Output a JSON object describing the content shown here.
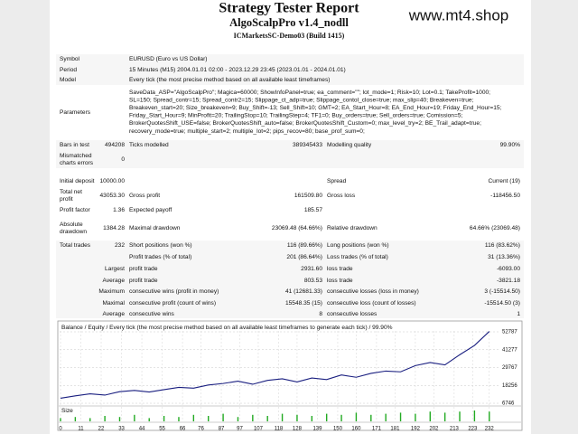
{
  "header": {
    "title": "Strategy Tester Report",
    "subtitle": "AlgoScalpPro v1.4_nodll",
    "server": "ICMarketsSC-Demo03 (Build 1415)",
    "site": "www.mt4.shop"
  },
  "info": [
    {
      "label": "Symbol",
      "value": "EURUSD (Euro vs US Dollar)"
    },
    {
      "label": "Period",
      "value": "15 Minutes (M15) 2004.01.01 02:00 - 2023.12.29 23:45 (2023.01.01 - 2024.01.01)"
    },
    {
      "label": "Model",
      "value": "Every tick (the most precise method based on all available least timeframes)"
    }
  ],
  "parameters": {
    "label": "Parameters",
    "lines": [
      "SaveData_ASP=\"AlgoScalpPro\"; Magica=60000; ShowInfoPanel=true; ea_comment=\"\"; lot_mode=1; Risk=10; Lot=0.1; TakeProfit=1000;",
      "SL=150; Spread_contr=15; Spread_contr2=15; Slippage_ct_adp=true; Slippage_contol_close=true; max_slip=40; Breakeven=true;",
      "Breakeven_start=20; Size_breakeven=9; Buy_Shift=-13; Sell_Shift=10; GMT=2; EA_Start_Hour=8; EA_End_Hour=19; Friday_End_Hour=15;",
      "Friday_Start_Hour=9; MinProfit=20; TrailingStop=10; TrailingStep=4; TF1=0; Buy_orders=true; Sell_orders=true; Comission=5;",
      "BrokerQuotesShift_USE=false; BrokerQuotesShift_auto=false; BrokerQuotesShift_Custom=0; max_level_try=2; BE_Trail_adapt=true;",
      "recovery_mode=true; multiple_start=2; multiple_lot=2; pips_recov=80; base_prof_sum=0;"
    ]
  },
  "stats": {
    "rows": [
      [
        "Bars in test",
        "494208",
        "Ticks modelled",
        "389345433",
        "Modelling quality",
        "99.90%"
      ],
      [
        "Mismatched charts errors",
        "0",
        null,
        null,
        null,
        null
      ],
      [
        "Initial deposit",
        "10000.00",
        null,
        null,
        "Spread",
        "Current (19)"
      ],
      [
        "Total net profit",
        "43053.30",
        "Gross profit",
        "161509.80",
        "Gross loss",
        "-118456.50"
      ],
      [
        "Profit factor",
        "1.36",
        "Expected payoff",
        "185.57",
        null,
        null
      ],
      [
        "Absolute drawdown",
        "1384.28",
        "Maximal drawdown",
        "23069.48 (64.66%)",
        "Relative drawdown",
        "64.66% (23069.48)"
      ],
      [
        "Total trades",
        "232",
        "Short positions (won %)",
        "116 (89.66%)",
        "Long positions (won %)",
        "116 (83.62%)"
      ],
      [
        null,
        null,
        "Profit trades (% of total)",
        "201 (86.64%)",
        "Loss trades (% of total)",
        "31 (13.36%)"
      ],
      [
        "Largest",
        null,
        "profit trade",
        "2931.60",
        "loss trade",
        "-6093.00"
      ],
      [
        "Average",
        null,
        "profit trade",
        "803.53",
        "loss trade",
        "-3821.18"
      ],
      [
        "Maximum",
        null,
        "consecutive wins (profit in money)",
        "41 (12681.33)",
        "consecutive losses (loss in money)",
        "3 (-15514.50)"
      ],
      [
        "Maximal",
        null,
        "consecutive profit (count of wins)",
        "15548.35 (15)",
        "consecutive loss (count of losses)",
        "-15514.50 (3)"
      ],
      [
        "Average",
        null,
        "consecutive wins",
        "8",
        "consecutive losses",
        "1"
      ]
    ]
  },
  "chart_data": {
    "type": "line",
    "legend": "Balance / Equity / Every tick (the most precise method based on all available least timeframes to generate each tick) / 99.90%",
    "size_label": "Size",
    "x": [
      0,
      8,
      16,
      24,
      32,
      40,
      48,
      56,
      64,
      72,
      80,
      88,
      96,
      104,
      112,
      120,
      128,
      136,
      144,
      152,
      160,
      168,
      176,
      184,
      192,
      200,
      208,
      216,
      224,
      232
    ],
    "series": [
      {
        "color": "#1a1f80",
        "values": [
          10000,
          11500,
          12800,
          12000,
          14200,
          15000,
          14000,
          15500,
          17000,
          16500,
          18500,
          19500,
          21000,
          19000,
          21500,
          22500,
          20500,
          23000,
          22000,
          25000,
          23500,
          26000,
          27500,
          27000,
          31000,
          33000,
          31500,
          38000,
          44000,
          53053
        ]
      }
    ],
    "sizes": {
      "color": "#22aa22",
      "values": [
        3,
        4,
        3,
        5,
        4,
        6,
        3,
        5,
        4,
        6,
        5,
        7,
        4,
        6,
        5,
        7,
        6,
        5,
        7,
        6,
        8,
        6,
        7,
        8,
        7,
        9,
        8,
        9,
        10,
        9
      ]
    },
    "xlim": [
      0,
      237
    ],
    "xticks": [
      0,
      11,
      22,
      33,
      44,
      55,
      66,
      76,
      87,
      97,
      107,
      118,
      128,
      139,
      150,
      160,
      171,
      181,
      192,
      202,
      213,
      223,
      232
    ],
    "ylim": [
      6746,
      52787
    ],
    "yticks": [
      6746,
      18256,
      29767,
      41277,
      52787
    ],
    "grid": true
  }
}
